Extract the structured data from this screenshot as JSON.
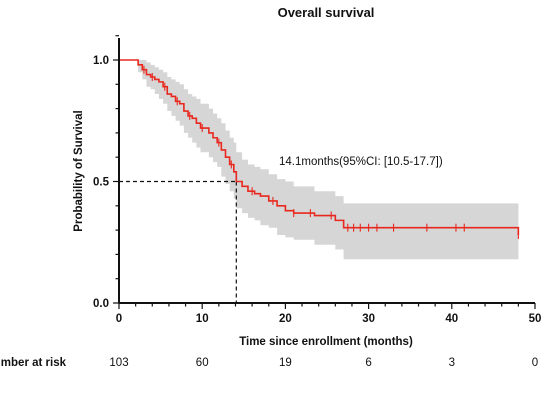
{
  "chart_data": {
    "type": "line",
    "title": "Overall survival",
    "xlabel": "Time since enrollment (months)",
    "ylabel": "Probability of Survival",
    "xlim": [
      0,
      50
    ],
    "ylim": [
      0,
      1.0
    ],
    "x_ticks": [
      0,
      10,
      20,
      30,
      40,
      50
    ],
    "x_tick_labels": [
      "0",
      "10",
      "20",
      "30",
      "40",
      "50"
    ],
    "y_ticks": [
      0.0,
      0.5,
      1.0
    ],
    "y_tick_labels": [
      "0.0",
      "0.5",
      "1.0"
    ],
    "grid": false,
    "colors": {
      "curve": "#e8281e",
      "ci_band": "#d6d6d6",
      "axis": "#111111",
      "median_line": "#111111"
    },
    "series": [
      {
        "x": [
          0,
          2,
          2.3,
          2.8,
          3.3,
          3.8,
          4.3,
          4.8,
          5.3,
          5.8,
          6.3,
          6.8,
          7.3,
          7.8,
          8.3,
          8.8,
          9.3,
          9.8,
          10.3,
          10.8,
          11.3,
          11.8,
          12.3,
          12.8,
          13.3,
          13.8,
          14.1,
          14.8,
          15.5,
          16.3,
          17.0,
          18.0,
          19.0,
          20.0,
          21.0,
          22.0,
          23.5,
          25.0,
          26.0,
          27.0,
          48.0
        ],
        "y": [
          1.0,
          1.0,
          0.98,
          0.96,
          0.94,
          0.93,
          0.92,
          0.91,
          0.89,
          0.86,
          0.85,
          0.83,
          0.82,
          0.79,
          0.77,
          0.76,
          0.74,
          0.72,
          0.72,
          0.7,
          0.68,
          0.66,
          0.63,
          0.6,
          0.57,
          0.54,
          0.5,
          0.48,
          0.46,
          0.45,
          0.44,
          0.42,
          0.4,
          0.38,
          0.37,
          0.37,
          0.36,
          0.36,
          0.34,
          0.31,
          0.28
        ],
        "ci_upper": [
          1.0,
          1.0,
          1.0,
          1.0,
          0.99,
          0.98,
          0.97,
          0.96,
          0.95,
          0.93,
          0.92,
          0.91,
          0.9,
          0.88,
          0.86,
          0.85,
          0.84,
          0.82,
          0.82,
          0.8,
          0.78,
          0.76,
          0.74,
          0.71,
          0.68,
          0.66,
          0.62,
          0.59,
          0.57,
          0.56,
          0.55,
          0.53,
          0.51,
          0.5,
          0.48,
          0.48,
          0.46,
          0.46,
          0.44,
          0.41,
          0.39
        ],
        "ci_lower": [
          1.0,
          1.0,
          0.95,
          0.92,
          0.89,
          0.88,
          0.86,
          0.84,
          0.82,
          0.79,
          0.77,
          0.75,
          0.73,
          0.7,
          0.68,
          0.66,
          0.64,
          0.62,
          0.62,
          0.6,
          0.58,
          0.56,
          0.52,
          0.49,
          0.46,
          0.43,
          0.39,
          0.37,
          0.35,
          0.34,
          0.32,
          0.31,
          0.28,
          0.27,
          0.26,
          0.26,
          0.24,
          0.24,
          0.22,
          0.18,
          0.16
        ]
      }
    ],
    "censor_marks_x": [
      3,
      4,
      5.5,
      7,
      8.5,
      10,
      12,
      13.5,
      16,
      18.5,
      21,
      23,
      25.5,
      27.5,
      28.2,
      29,
      30,
      31,
      33,
      37,
      40.5,
      41.5,
      48
    ],
    "median": {
      "x": 14.1,
      "y": 0.5,
      "label": "14.1months(95%CI: [10.5-17.7])"
    },
    "risk_table": {
      "label": "Number at risk",
      "times": [
        0,
        10,
        20,
        30,
        40,
        50
      ],
      "values": [
        "103",
        "60",
        "19",
        "6",
        "3",
        "0"
      ]
    }
  }
}
